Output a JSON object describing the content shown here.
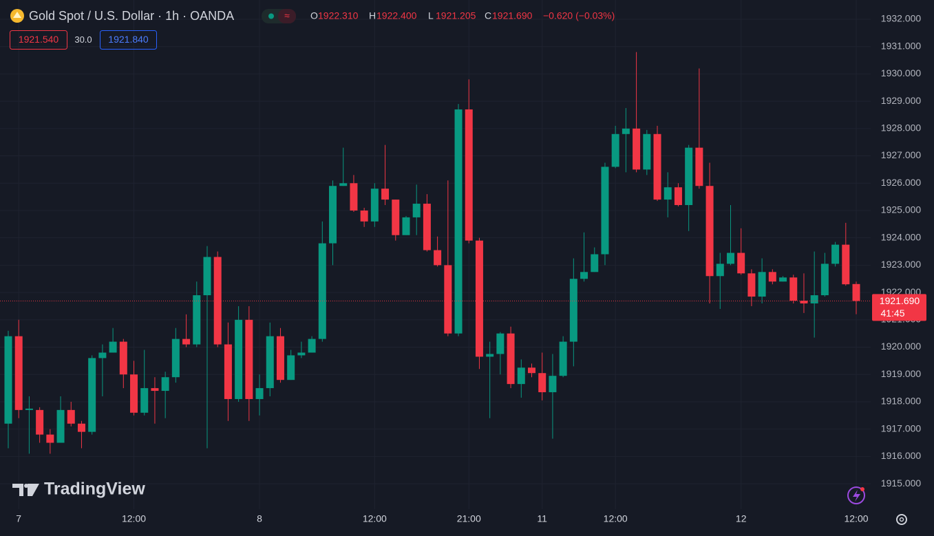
{
  "header": {
    "title": "Gold Spot / U.S. Dollar · 1h · OANDA",
    "ohlc": [
      {
        "key": "O",
        "value": "1922.310"
      },
      {
        "key": "H",
        "value": "1922.400"
      },
      {
        "key": "L",
        "value": "1921.205"
      },
      {
        "key": "C",
        "value": "1921.690"
      }
    ],
    "change": "−0.620 (−0.03%)",
    "bid": "1921.540",
    "spread": "30.0",
    "ask": "1921.840"
  },
  "logo": "TradingView",
  "chart_data": {
    "type": "candlestick",
    "categories": [
      null,
      "7",
      null,
      null,
      null,
      null,
      null,
      null,
      null,
      null,
      null,
      null,
      "12:00",
      null,
      null,
      null,
      null,
      null,
      null,
      null,
      null,
      null,
      null,
      null,
      "8",
      null,
      null,
      null,
      null,
      null,
      null,
      null,
      null,
      null,
      null,
      "12:00",
      null,
      null,
      null,
      null,
      null,
      null,
      null,
      null,
      "21:00",
      null,
      null,
      null,
      null,
      null,
      null,
      "11",
      null,
      null,
      null,
      null,
      null,
      null,
      "12:00",
      null,
      null,
      null,
      null,
      null,
      null,
      null,
      null,
      null,
      null,
      null,
      "12",
      null,
      null,
      null,
      null,
      null,
      null,
      null,
      null,
      null,
      null,
      "12:00"
    ],
    "open": [
      1917.2,
      1920.4,
      1917.7,
      1917.7,
      1916.8,
      1916.5,
      1917.7,
      1917.2,
      1916.9,
      1919.6,
      1919.8,
      1920.2,
      1919.0,
      1917.6,
      1918.5,
      1918.4,
      1918.9,
      1920.3,
      1920.1,
      1921.9,
      1923.3,
      1920.1,
      1918.1,
      1921.0,
      1918.1,
      1918.5,
      1920.4,
      1918.8,
      1919.7,
      1919.8,
      1920.3,
      1923.8,
      1925.9,
      1926.0,
      1925.0,
      1924.6,
      1925.8,
      1925.4,
      1924.1,
      1924.75,
      1925.25,
      1923.55,
      1923.0,
      1920.5,
      1928.7,
      1923.9,
      1919.65,
      1919.75,
      1920.5,
      1918.65,
      1919.25,
      1919.05,
      1918.35,
      1918.95,
      1920.2,
      1922.5,
      1922.75,
      1923.4,
      1926.6,
      1927.8,
      1928.0,
      1926.5,
      1927.8,
      1925.4,
      1925.85,
      1925.2,
      1927.3,
      1925.9,
      1922.6,
      1923.05,
      1923.45,
      1922.7,
      1921.85,
      1922.75,
      1922.4,
      1922.55,
      1921.7,
      1921.6,
      1921.9,
      1923.05,
      1923.75,
      1922.31
    ],
    "high": [
      1920.6,
      1921.0,
      1918.2,
      1917.8,
      1917.0,
      1918.2,
      1918.0,
      1917.3,
      1919.7,
      1920.1,
      1920.7,
      1920.3,
      1919.5,
      1919.9,
      1918.9,
      1919.1,
      1920.7,
      1921.2,
      1922.4,
      1923.7,
      1923.5,
      1920.9,
      1921.5,
      1921.5,
      1919.0,
      1920.9,
      1920.7,
      1919.9,
      1920.2,
      1920.4,
      1924.6,
      1926.1,
      1927.3,
      1926.3,
      1925.1,
      1926.0,
      1927.4,
      1925.4,
      1924.8,
      1925.95,
      1925.6,
      1924.05,
      1926.1,
      1928.9,
      1929.8,
      1924.0,
      1920.2,
      1920.55,
      1920.75,
      1919.55,
      1919.4,
      1919.8,
      1919.75,
      1920.4,
      1923.25,
      1924.2,
      1923.65,
      1926.75,
      1928.1,
      1928.75,
      1930.8,
      1927.95,
      1928.1,
      1926.4,
      1926.0,
      1927.4,
      1930.2,
      1926.75,
      1923.45,
      1925.2,
      1924.35,
      1922.85,
      1923.25,
      1922.85,
      1922.6,
      1922.65,
      1922.7,
      1923.5,
      1923.45,
      1923.85,
      1924.55,
      1922.4
    ],
    "low": [
      1916.3,
      1917.4,
      1916.1,
      1916.5,
      1916.1,
      1916.5,
      1917.1,
      1916.3,
      1916.8,
      1918.2,
      1919.8,
      1918.5,
      1917.5,
      1917.5,
      1917.2,
      1917.4,
      1918.7,
      1920.0,
      1920.0,
      1916.3,
      1920.0,
      1917.3,
      1918.0,
      1917.3,
      1917.5,
      1918.2,
      1918.7,
      1918.8,
      1919.6,
      1919.8,
      1920.2,
      1923.0,
      1925.9,
      1924.95,
      1924.4,
      1924.4,
      1925.2,
      1923.9,
      1924.1,
      1924.1,
      1923.5,
      1922.95,
      1920.4,
      1920.4,
      1923.8,
      1919.2,
      1917.4,
      1919.0,
      1918.5,
      1918.15,
      1918.9,
      1918.05,
      1916.65,
      1918.9,
      1919.3,
      1922.4,
      1922.75,
      1923.0,
      1926.55,
      1926.4,
      1926.4,
      1926.3,
      1925.35,
      1924.75,
      1925.15,
      1924.25,
      1925.8,
      1921.6,
      1921.4,
      1923.0,
      1922.65,
      1921.5,
      1921.6,
      1922.3,
      1922.4,
      1921.6,
      1921.25,
      1920.35,
      1921.85,
      1922.95,
      1922.25,
      1921.205
    ],
    "close": [
      1920.4,
      1917.7,
      1917.75,
      1916.8,
      1916.5,
      1917.7,
      1917.2,
      1916.9,
      1919.6,
      1919.8,
      1920.2,
      1919.0,
      1917.6,
      1918.5,
      1918.4,
      1918.9,
      1920.3,
      1920.1,
      1921.9,
      1923.3,
      1920.1,
      1918.1,
      1921.0,
      1918.1,
      1918.5,
      1920.4,
      1918.8,
      1919.7,
      1919.8,
      1920.3,
      1923.8,
      1925.9,
      1926.0,
      1925.0,
      1924.6,
      1925.8,
      1925.4,
      1924.1,
      1924.75,
      1925.25,
      1923.55,
      1923.0,
      1920.5,
      1928.7,
      1923.9,
      1919.65,
      1919.75,
      1920.5,
      1918.65,
      1919.25,
      1919.05,
      1918.35,
      1918.95,
      1920.2,
      1922.5,
      1922.75,
      1923.4,
      1926.6,
      1927.8,
      1928.0,
      1926.5,
      1927.8,
      1925.4,
      1925.85,
      1925.2,
      1927.3,
      1925.9,
      1922.6,
      1923.05,
      1923.45,
      1922.7,
      1921.85,
      1922.75,
      1922.4,
      1922.55,
      1921.7,
      1921.6,
      1921.9,
      1923.05,
      1923.75,
      1922.3,
      1921.69
    ],
    "up_color": "#089981",
    "down_color": "#f23645",
    "ylim": [
      1914.07,
      1932.705
    ],
    "yticks": [
      {
        "value": 1915,
        "label": "1915.000"
      },
      {
        "value": 1916,
        "label": "1916.000"
      },
      {
        "value": 1917,
        "label": "1917.000"
      },
      {
        "value": 1918,
        "label": "1918.000"
      },
      {
        "value": 1919,
        "label": "1919.000"
      },
      {
        "value": 1920,
        "label": "1920.000"
      },
      {
        "value": 1921,
        "label": "1921.000"
      },
      {
        "value": 1922,
        "label": "1922.000"
      },
      {
        "value": 1923,
        "label": "1923.000"
      },
      {
        "value": 1924,
        "label": "1924.000"
      },
      {
        "value": 1925,
        "label": "1925.000"
      },
      {
        "value": 1926,
        "label": "1926.000"
      },
      {
        "value": 1927,
        "label": "1927.000"
      },
      {
        "value": 1928,
        "label": "1928.000"
      },
      {
        "value": 1929,
        "label": "1929.000"
      },
      {
        "value": 1930,
        "label": "1930.000"
      },
      {
        "value": 1931,
        "label": "1931.000"
      },
      {
        "value": 1932,
        "label": "1932.000"
      }
    ],
    "grid": true,
    "last": {
      "value": 1921.69,
      "label": "1921.690",
      "countdown": "41:45"
    }
  }
}
